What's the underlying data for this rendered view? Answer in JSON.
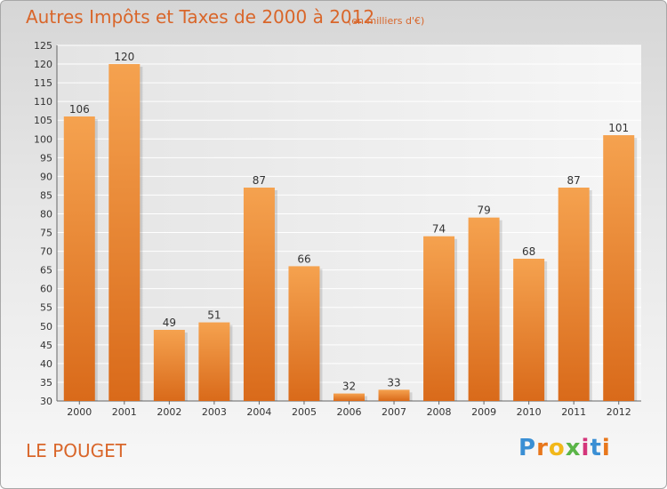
{
  "title": "Autres Impôts et Taxes de 2000 à 2012",
  "subtitle": "(en milliers d'€)",
  "commune": "LE POUGET",
  "logo": {
    "letters": [
      "P",
      "r",
      "o",
      "x",
      "i",
      "t",
      "i"
    ],
    "colors": [
      "#3a8fd4",
      "#e8771c",
      "#f2b81a",
      "#5bb548",
      "#d4357a",
      "#3a8fd4",
      "#e8771c"
    ]
  },
  "colors": {
    "bar": "#e8842f",
    "text_accent": "#d9662a"
  },
  "chart_data": {
    "type": "bar",
    "categories": [
      "2000",
      "2001",
      "2002",
      "2003",
      "2004",
      "2005",
      "2006",
      "2007",
      "2008",
      "2009",
      "2010",
      "2011",
      "2012"
    ],
    "values": [
      106,
      120,
      49,
      51,
      87,
      66,
      32,
      33,
      74,
      79,
      68,
      87,
      101
    ],
    "ylim": [
      30,
      125
    ],
    "yticks": [
      30,
      35,
      40,
      45,
      50,
      55,
      60,
      65,
      70,
      75,
      80,
      85,
      90,
      95,
      100,
      105,
      110,
      115,
      120,
      125
    ],
    "grid": true
  }
}
